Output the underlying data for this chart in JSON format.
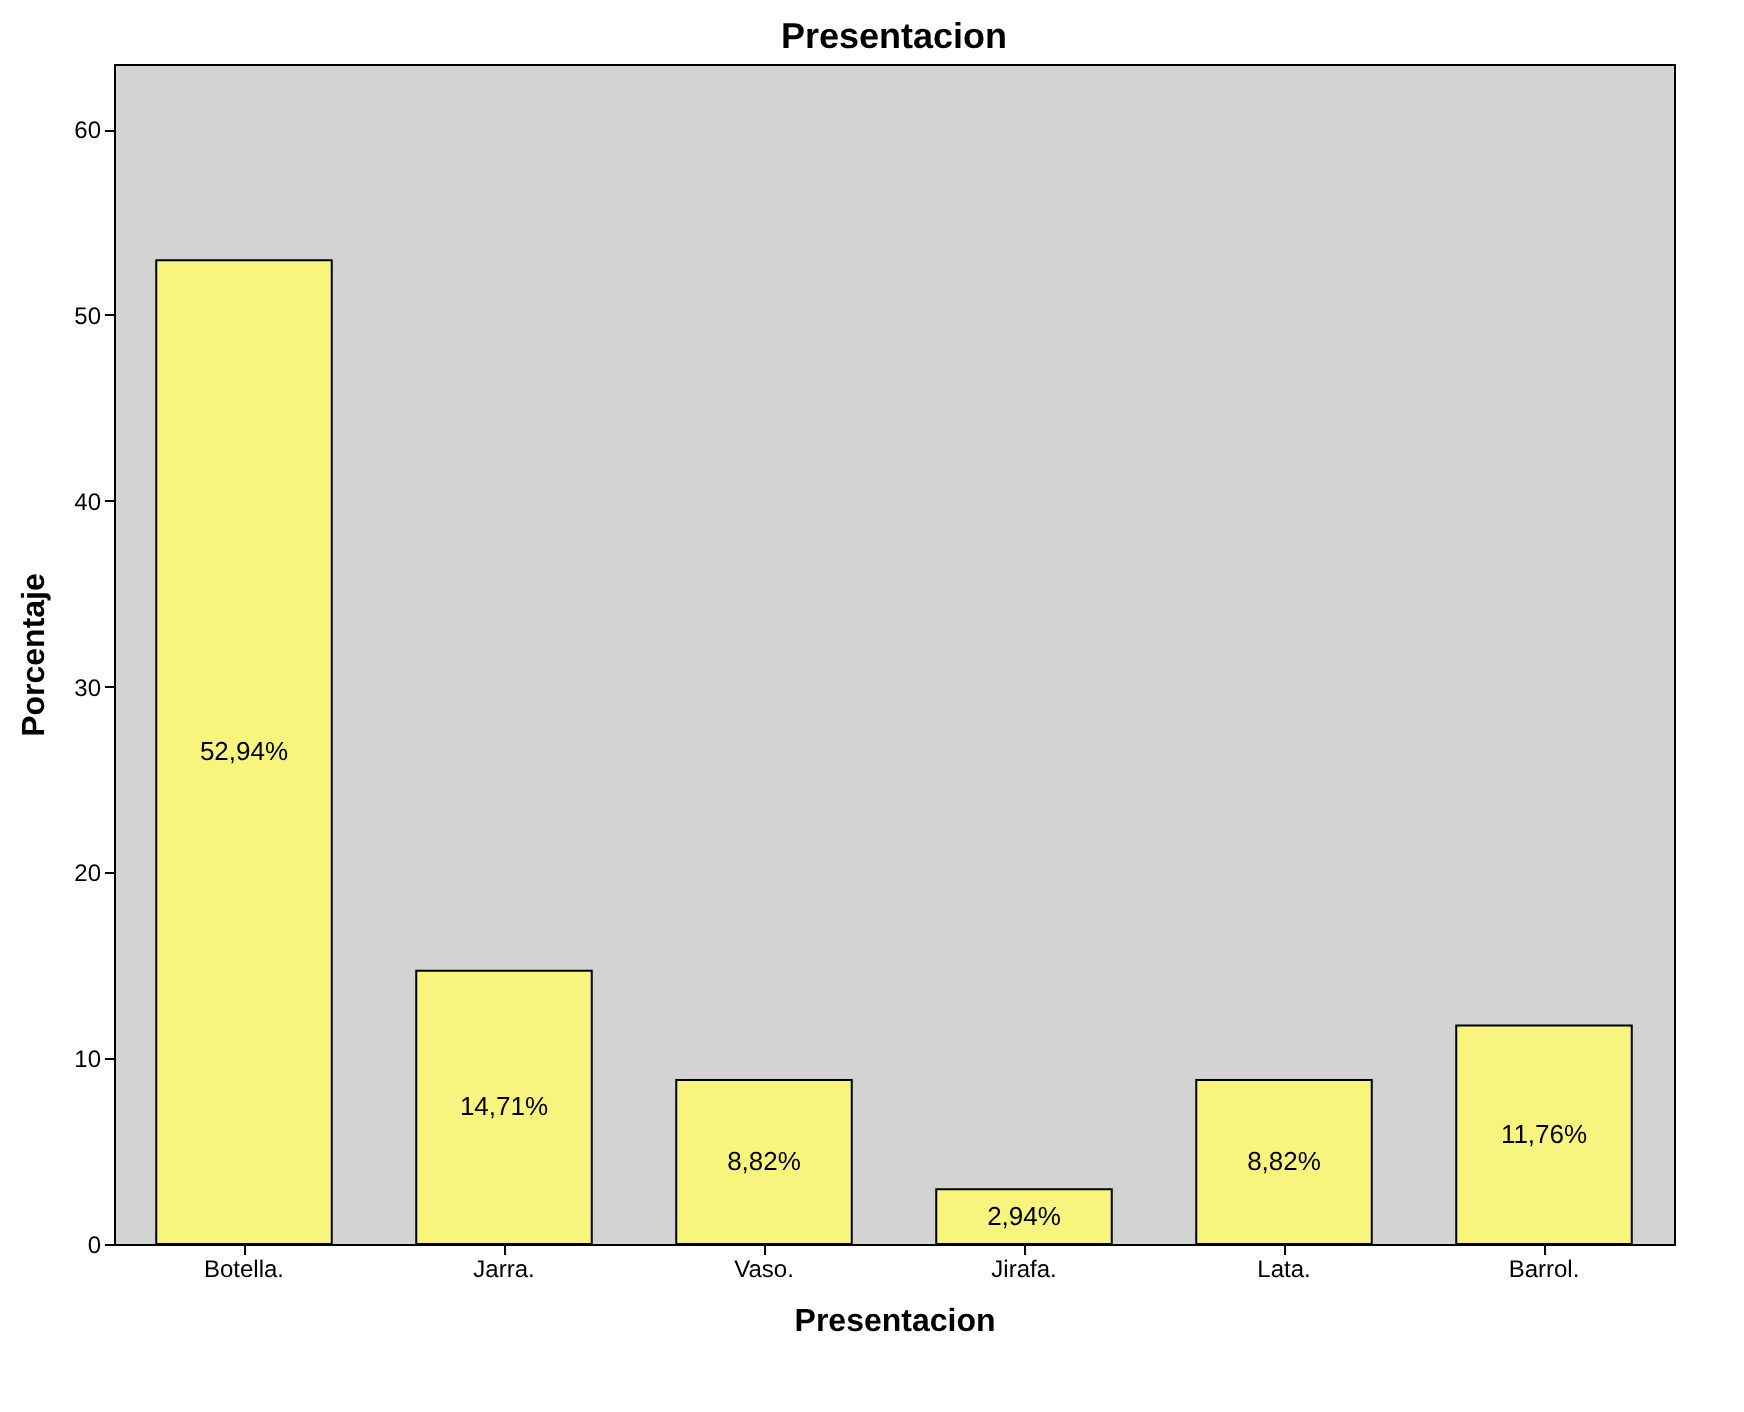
{
  "chart_data": {
    "type": "bar",
    "title": "Presentacion",
    "xlabel": "Presentacion",
    "ylabel": "Porcentaje",
    "categories": [
      "Botella.",
      "Jarra.",
      "Vaso.",
      "Jirafa.",
      "Lata.",
      "Barrol."
    ],
    "values": [
      52.94,
      14.71,
      8.82,
      2.94,
      8.82,
      11.76
    ],
    "value_labels": [
      "52,94%",
      "14,71%",
      "8,82%",
      "2,94%",
      "8,82%",
      "11,76%"
    ],
    "color": "#f8f57f",
    "ylim": [
      0,
      63.5
    ],
    "yticks": [
      0,
      10,
      20,
      30,
      40,
      50,
      60
    ],
    "grid": false
  }
}
